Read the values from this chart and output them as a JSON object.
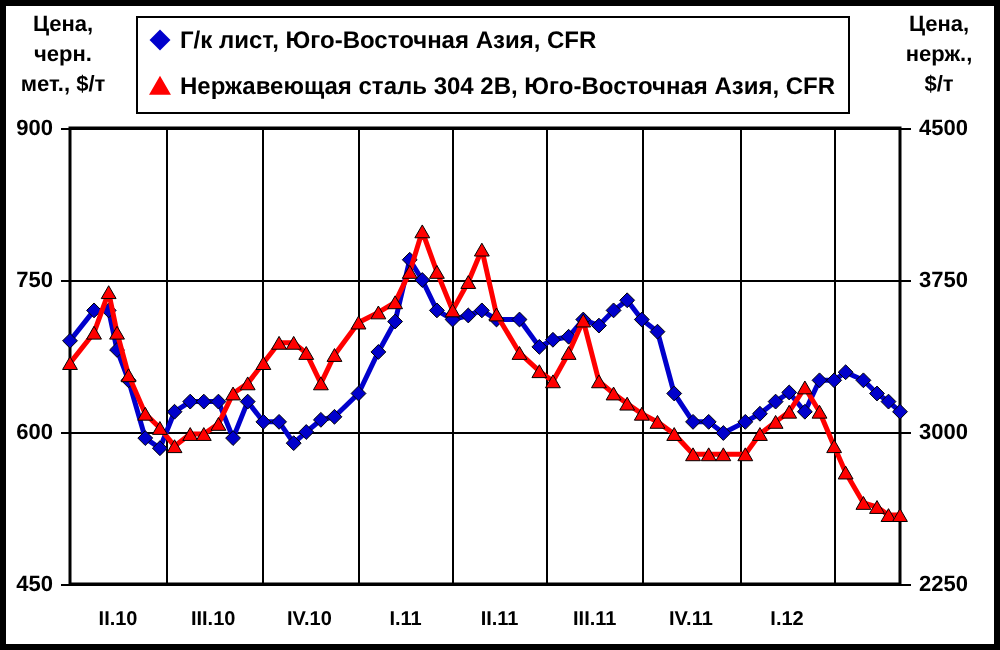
{
  "chart_data": {
    "type": "line",
    "ylabel": "Цена,\nчерн.\nмет., $/т",
    "y2label": "Цена,\nнерж.,\n$/т",
    "x": [
      "2010-04-01",
      "2010-04-24",
      "2010-05-08",
      "2010-05-16",
      "2010-05-27",
      "2010-06-12",
      "2010-06-26",
      "2010-07-10",
      "2010-07-25",
      "2010-08-07",
      "2010-08-21",
      "2010-09-04",
      "2010-09-18",
      "2010-10-03",
      "2010-10-18",
      "2010-11-01",
      "2010-11-13",
      "2010-11-27",
      "2010-12-10",
      "2011-01-02",
      "2011-01-21",
      "2011-02-06",
      "2011-02-20",
      "2011-03-04",
      "2011-03-18",
      "2011-04-02",
      "2011-04-17",
      "2011-04-30",
      "2011-05-14",
      "2011-06-05",
      "2011-06-24",
      "2011-07-07",
      "2011-07-22",
      "2011-08-05",
      "2011-08-20",
      "2011-09-03",
      "2011-09-16",
      "2011-09-30",
      "2011-10-15",
      "2011-10-31",
      "2011-11-18",
      "2011-12-03",
      "2011-12-17",
      "2012-01-07",
      "2012-01-21",
      "2012-02-05",
      "2012-02-18",
      "2012-03-04",
      "2012-03-18",
      "2012-04-01",
      "2012-04-12",
      "2012-04-29",
      "2012-05-12",
      "2012-05-23",
      "2012-06-03"
    ],
    "xlim": [
      "2010-04-01",
      "2012-06-03"
    ],
    "xticks": [
      {
        "value": "2010-05-16",
        "label": "II.10"
      },
      {
        "value": "2010-07-01",
        "label": null
      },
      {
        "value": "2010-08-15",
        "label": "III.10"
      },
      {
        "value": "2010-10-01",
        "label": null
      },
      {
        "value": "2010-11-15",
        "label": "IV.10"
      },
      {
        "value": "2011-01-01",
        "label": null
      },
      {
        "value": "2011-02-15",
        "label": "I.11"
      },
      {
        "value": "2011-04-01",
        "label": null
      },
      {
        "value": "2011-05-16",
        "label": "II.11"
      },
      {
        "value": "2011-07-01",
        "label": null
      },
      {
        "value": "2011-08-15",
        "label": "III.11"
      },
      {
        "value": "2011-10-01",
        "label": null
      },
      {
        "value": "2011-11-15",
        "label": "IV.11"
      },
      {
        "value": "2012-01-01",
        "label": null
      },
      {
        "value": "2012-02-15",
        "label": "I.12"
      },
      {
        "value": "2012-04-01",
        "label": null
      }
    ],
    "ylim": [
      450,
      900
    ],
    "yticks": [
      450,
      600,
      750,
      900
    ],
    "y2lim": [
      2250,
      4500
    ],
    "y2ticks": [
      2250,
      3000,
      3750,
      4500
    ],
    "grid": true,
    "legend": "top",
    "series": [
      {
        "name": "Г/к лист, Юго-Восточная Азия, CFR",
        "color": "#0000cc",
        "marker": "diamond",
        "values": [
          690,
          720,
          720,
          681,
          651,
          594,
          584,
          620,
          630,
          630,
          630,
          594,
          630,
          610,
          610,
          589,
          600,
          612,
          615,
          638,
          679,
          709,
          770,
          750,
          720,
          711,
          715,
          720,
          711,
          711,
          684,
          691,
          694,
          711,
          705,
          720,
          730,
          711,
          699,
          638,
          610,
          610,
          599,
          610,
          618,
          630,
          639,
          620,
          651,
          651,
          659,
          651,
          638,
          630,
          620
        ]
      },
      {
        "name": "Нержавеющая сталь 304 2В, Юго-Восточная Азия, CFR",
        "color": "#ff0000",
        "marker": "triangle",
        "axis": "y2",
        "values": [
          3340,
          3490,
          3690,
          3490,
          3280,
          3090,
          3020,
          2930,
          2990,
          2990,
          3040,
          3190,
          3240,
          3340,
          3440,
          3440,
          3390,
          3240,
          3380,
          3540,
          3590,
          3640,
          3790,
          3990,
          3790,
          3600,
          3740,
          3900,
          3580,
          3390,
          3300,
          3250,
          3390,
          3550,
          3250,
          3190,
          3140,
          3090,
          3050,
          2990,
          2890,
          2890,
          2890,
          2890,
          2990,
          3050,
          3100,
          3220,
          3100,
          2930,
          2800,
          2650,
          2630,
          2590,
          2590
        ]
      }
    ]
  }
}
